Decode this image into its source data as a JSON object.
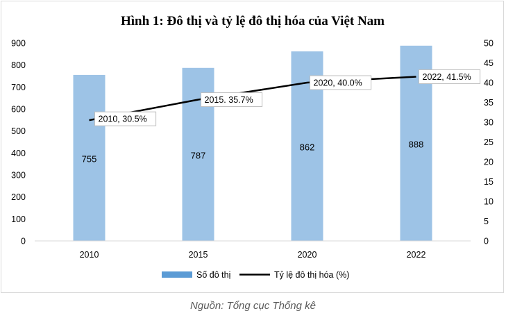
{
  "source_note": "Nguồn: Tổng cục Thống kê",
  "colors": {
    "bar": "#9dc3e6",
    "bar_legend": "#5b9bd5",
    "line": "#000000",
    "text": "#000000",
    "gridline": "#d9d9d9"
  },
  "chart_data": {
    "type": "bar",
    "title": "Hình 1: Đô thị và tỷ lệ đô thị hóa của Việt Nam",
    "categories": [
      "2010",
      "2015",
      "2020",
      "2022"
    ],
    "grid": false,
    "legend_position": "bottom",
    "series": [
      {
        "name": "Số đô thị",
        "type": "bar",
        "axis": "left",
        "values": [
          755,
          787,
          862,
          888
        ],
        "labels": [
          "755",
          "787",
          "862",
          "888"
        ]
      },
      {
        "name": "Tỷ lệ đô thị hóa (%)",
        "type": "line",
        "axis": "right",
        "values": [
          30.5,
          35.7,
          40.0,
          41.5
        ],
        "labels": [
          "2010, 30.5%",
          "2015. 35.7%",
          "2020, 40.0%",
          "2022, 41.5%"
        ]
      }
    ],
    "y_left": {
      "min": 0,
      "max": 900,
      "ticks": [
        "0",
        "100",
        "200",
        "300",
        "400",
        "500",
        "600",
        "700",
        "800",
        "900"
      ]
    },
    "y_right": {
      "min": 0,
      "max": 50,
      "ticks": [
        "0",
        "5",
        "10",
        "15",
        "20",
        "25",
        "30",
        "35",
        "40",
        "45",
        "50"
      ]
    }
  }
}
